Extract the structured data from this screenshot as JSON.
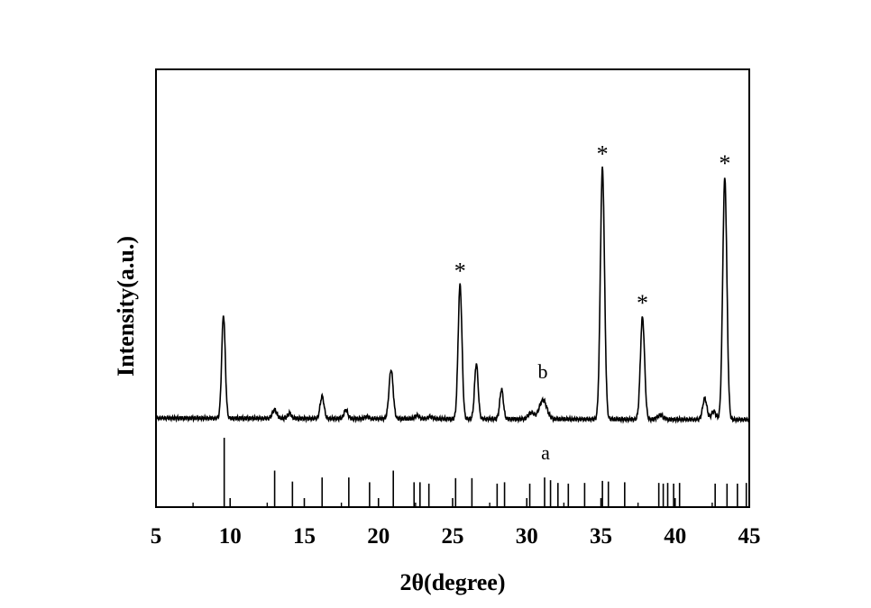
{
  "chart_data": {
    "type": "line",
    "xlabel": "2θ(degree)",
    "ylabel": "Intensity(a.u.)",
    "xlim": [
      5,
      45
    ],
    "x_ticks": [
      5,
      10,
      15,
      20,
      25,
      30,
      35,
      40,
      45
    ],
    "x_tick_labels": [
      "5",
      "10",
      "15",
      "20",
      "25",
      "30",
      "35",
      "40",
      "45"
    ],
    "y_ticks_shown": false,
    "grid": false,
    "series": [
      {
        "label": "b",
        "kind": "measured pattern",
        "baseline": 0.05,
        "peaks": [
          {
            "x": 9.55,
            "h": 0.97,
            "w": 0.12
          },
          {
            "x": 13.0,
            "h": 0.08,
            "w": 0.15
          },
          {
            "x": 14.0,
            "h": 0.05,
            "w": 0.12
          },
          {
            "x": 16.2,
            "h": 0.21,
            "w": 0.13
          },
          {
            "x": 17.8,
            "h": 0.08,
            "w": 0.13
          },
          {
            "x": 19.2,
            "h": 0.02,
            "w": 0.12
          },
          {
            "x": 20.85,
            "h": 0.46,
            "w": 0.14
          },
          {
            "x": 22.6,
            "h": 0.03,
            "w": 0.15
          },
          {
            "x": 23.5,
            "h": 0.02,
            "w": 0.15
          },
          {
            "x": 25.5,
            "h": 1.26,
            "w": 0.13
          },
          {
            "x": 26.6,
            "h": 0.52,
            "w": 0.12
          },
          {
            "x": 28.3,
            "h": 0.28,
            "w": 0.12
          },
          {
            "x": 30.3,
            "h": 0.06,
            "w": 0.2
          },
          {
            "x": 31.1,
            "h": 0.18,
            "w": 0.25
          },
          {
            "x": 35.1,
            "h": 2.36,
            "w": 0.14
          },
          {
            "x": 37.8,
            "h": 0.96,
            "w": 0.14
          },
          {
            "x": 39.0,
            "h": 0.04,
            "w": 0.2
          },
          {
            "x": 42.0,
            "h": 0.2,
            "w": 0.14
          },
          {
            "x": 42.6,
            "h": 0.08,
            "w": 0.15
          },
          {
            "x": 43.35,
            "h": 2.27,
            "w": 0.14
          }
        ]
      },
      {
        "label": "a",
        "kind": "reference stick pattern",
        "positions": [
          9.6,
          13.0,
          14.2,
          16.2,
          18.0,
          19.4,
          21.0,
          22.4,
          22.8,
          23.4,
          25.2,
          26.3,
          28.0,
          28.5,
          30.2,
          31.2,
          31.6,
          32.1,
          32.8,
          33.9,
          35.1,
          35.5,
          36.6,
          38.9,
          39.2,
          39.5,
          39.9,
          40.3,
          42.7,
          43.5,
          44.2,
          44.8
        ],
        "heights": [
          1.0,
          0.52,
          0.36,
          0.42,
          0.42,
          0.35,
          0.52,
          0.35,
          0.35,
          0.33,
          0.41,
          0.41,
          0.33,
          0.35,
          0.33,
          0.42,
          0.38,
          0.34,
          0.33,
          0.34,
          0.37,
          0.36,
          0.35,
          0.34,
          0.33,
          0.34,
          0.33,
          0.34,
          0.33,
          0.33,
          0.33,
          0.34
        ]
      }
    ],
    "annotations": {
      "stars": [
        25.5,
        35.1,
        37.8,
        43.35
      ],
      "star_symbol": "*",
      "label_a": "a",
      "label_b": "b"
    }
  }
}
